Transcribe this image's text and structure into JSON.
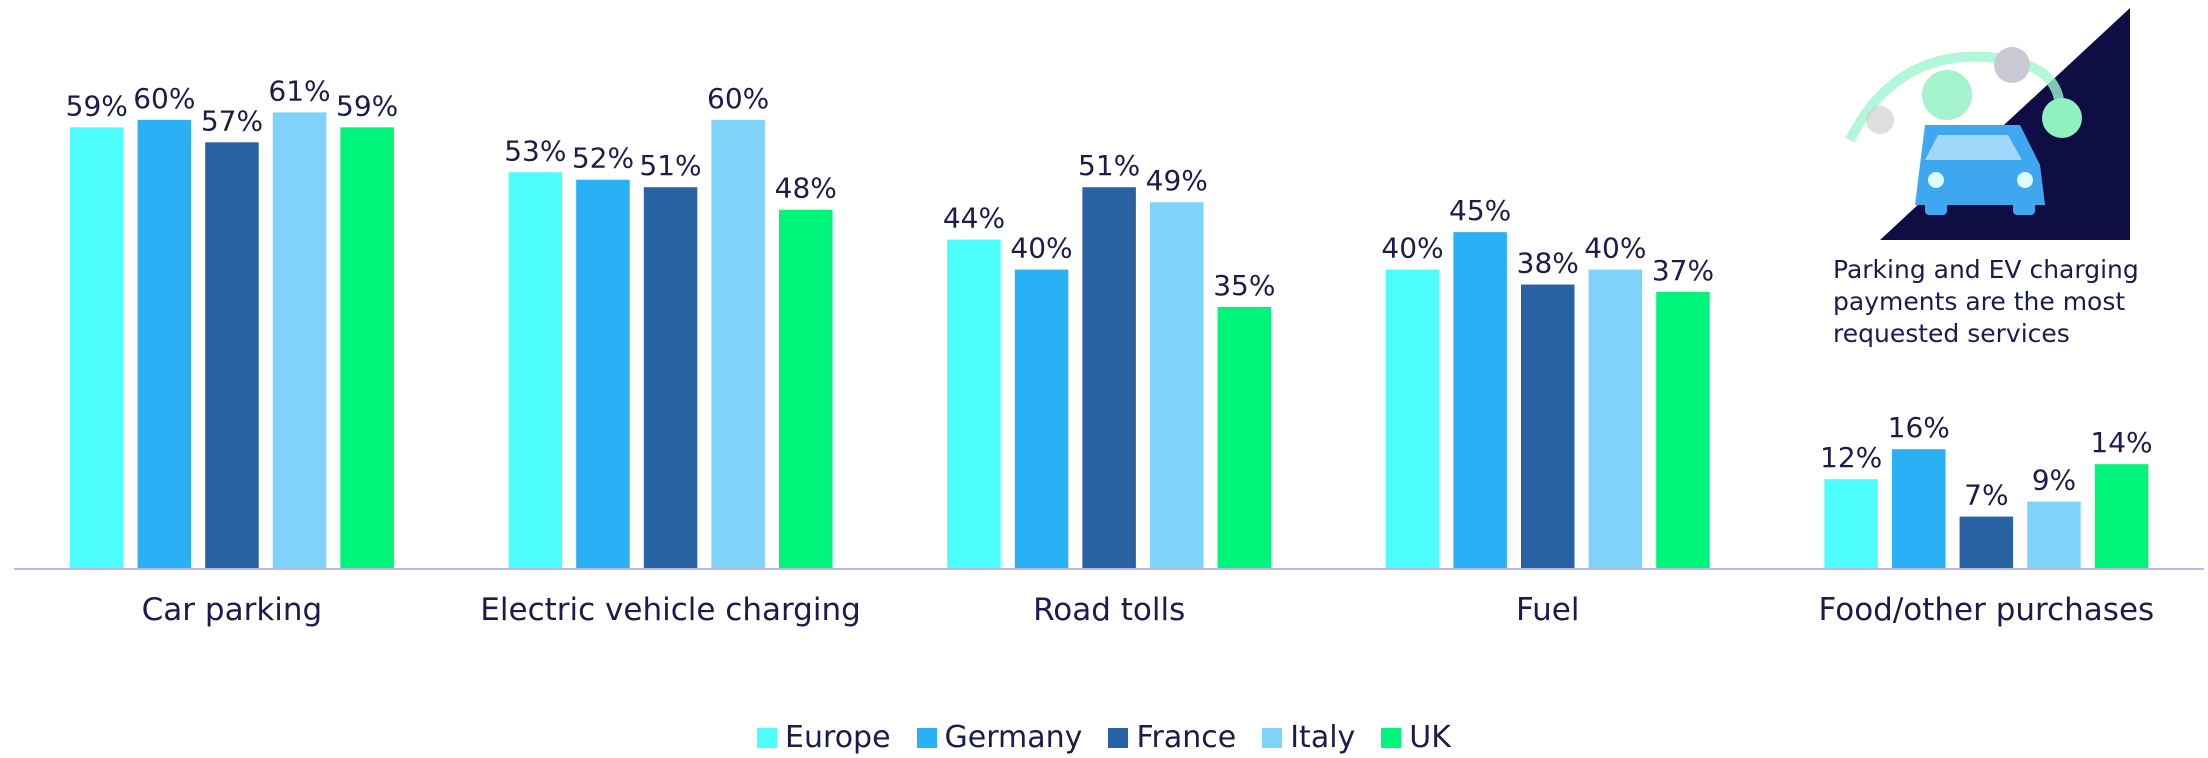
{
  "chart_data": {
    "type": "bar",
    "categories": [
      "Car parking",
      "Electric vehicle charging",
      "Road tolls",
      "Fuel",
      "Food/other purchases"
    ],
    "series": [
      {
        "name": "Europe",
        "color": "#4dfcfc",
        "values": [
          59,
          53,
          44,
          40,
          12
        ],
        "value_labels": [
          "59%",
          "53%",
          "44%",
          "40%",
          "12%"
        ]
      },
      {
        "name": "Germany",
        "color": "#29b0f5",
        "values": [
          60,
          52,
          40,
          45,
          16
        ],
        "value_labels": [
          "60%",
          "52%",
          "40%",
          "45%",
          "16%"
        ]
      },
      {
        "name": "France",
        "color": "#2962a3",
        "values": [
          57,
          51,
          51,
          38,
          7
        ],
        "value_labels": [
          "57%",
          "51%",
          "51%",
          "38%",
          "7%"
        ]
      },
      {
        "name": "Italy",
        "color": "#7fd3fa",
        "values": [
          61,
          60,
          49,
          40,
          9
        ],
        "value_labels": [
          "61%",
          "60%",
          "49%",
          "40%",
          "9%"
        ]
      },
      {
        "name": "UK",
        "color": "#00f57a",
        "values": [
          59,
          48,
          35,
          37,
          14
        ],
        "value_labels": [
          "59%",
          "48%",
          "35%",
          "37%",
          "14%"
        ]
      }
    ],
    "ylim": [
      0,
      70
    ],
    "annotation": "Parking and EV charging payments are the most requested services"
  }
}
